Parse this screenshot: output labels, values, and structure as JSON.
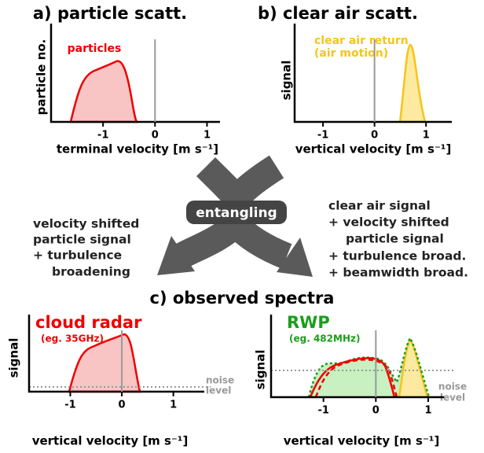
{
  "panels": [
    {
      "title": "a) particle scatt.",
      "ylabel": "particle no.",
      "labels": [
        "particles"
      ],
      "xlabel": "terminal velocity [m s⁻¹]",
      "xlim": [
        -2,
        1.25
      ],
      "xticks": [
        -1,
        0,
        1
      ]
    },
    {
      "title": "b) clear air scatt.",
      "ylabel": "signal",
      "labels": [
        "clear air return",
        "(air motion)"
      ],
      "xlabel": "vertical velocity [m s⁻¹]",
      "xlim": [
        -1.55,
        1.5
      ],
      "xticks": [
        -1,
        0,
        1
      ]
    },
    {
      "title": "cloud radar",
      "ylabel": "signal",
      "labels": [
        "(eg. 35GHz)",
        "noise",
        "level"
      ],
      "xlabel": "vertical velocity [m s⁻¹]",
      "xlim": [
        -1.8,
        1.6
      ],
      "xticks": [
        -1,
        0,
        1
      ]
    },
    {
      "title": "RWP",
      "ylabel": "signal",
      "labels": [
        "(eg. 482MHz)",
        "noise",
        "level"
      ],
      "xlabel": "vertical velocity [m s⁻¹]",
      "xlim": [
        -2,
        1.3
      ],
      "xticks": [
        -1,
        0,
        1
      ]
    }
  ],
  "middle": {
    "box": "entangling",
    "left": [
      "velocity shifted",
      "particle signal",
      "+ turbulence",
      "broadening"
    ],
    "right": [
      "clear air signal",
      "+ velocity shifted",
      "particle signal",
      "+ turbulence broad.",
      "+ beamwidth broad."
    ]
  },
  "observed_title": "c) observed spectra"
}
